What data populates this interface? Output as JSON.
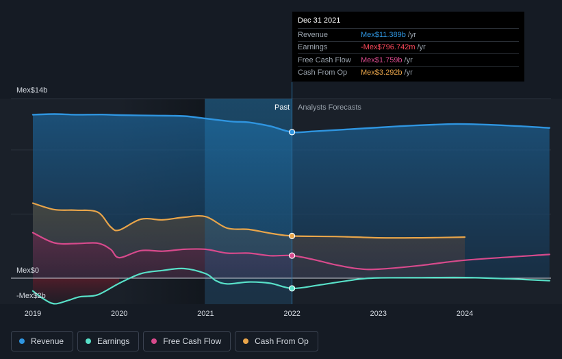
{
  "tooltip": {
    "date": "Dec 31 2021",
    "rows": [
      {
        "label": "Revenue",
        "value": "Mex$11.389b",
        "unit": "/yr",
        "color": "#2f95e0"
      },
      {
        "label": "Earnings",
        "value": "-Mex$796.742m",
        "unit": "/yr",
        "color": "#ff4a5c"
      },
      {
        "label": "Free Cash Flow",
        "value": "Mex$1.759b",
        "unit": "/yr",
        "color": "#d74a8c"
      },
      {
        "label": "Cash From Op",
        "value": "Mex$3.292b",
        "unit": "/yr",
        "color": "#e9a54a"
      }
    ]
  },
  "regions": {
    "past": "Past",
    "forecast": "Analysts Forecasts"
  },
  "legend": [
    {
      "label": "Revenue",
      "color": "#2f95e0"
    },
    {
      "label": "Earnings",
      "color": "#58e0c8"
    },
    {
      "label": "Free Cash Flow",
      "color": "#d74a8c"
    },
    {
      "label": "Cash From Op",
      "color": "#e9a54a"
    }
  ],
  "chart_data": {
    "type": "line",
    "y_unit": "Mex$ billions",
    "ylim": [
      -2,
      14
    ],
    "y_tick_labels": [
      "Mex$14b",
      "Mex$0",
      "-Mex$2b"
    ],
    "xlim": [
      2019,
      2024.98
    ],
    "x_tick_labels": [
      "2019",
      "2020",
      "2021",
      "2022",
      "2023",
      "2024"
    ],
    "highlight_x": 2022,
    "shaded_past_range": [
      2020.99,
      2022
    ],
    "series": [
      {
        "name": "Revenue",
        "color": "#2f95e0",
        "points": [
          [
            2019,
            12.75
          ],
          [
            2019.25,
            12.8
          ],
          [
            2019.5,
            12.75
          ],
          [
            2019.8,
            12.76
          ],
          [
            2020,
            12.72
          ],
          [
            2020.4,
            12.68
          ],
          [
            2020.75,
            12.64
          ],
          [
            2021,
            12.45
          ],
          [
            2021.3,
            12.22
          ],
          [
            2021.5,
            12.15
          ],
          [
            2021.75,
            11.85
          ],
          [
            2022,
            11.389
          ],
          [
            2022.25,
            11.45
          ],
          [
            2022.75,
            11.65
          ],
          [
            2023.25,
            11.85
          ],
          [
            2023.75,
            12.0
          ],
          [
            2024,
            12.02
          ],
          [
            2024.5,
            11.9
          ],
          [
            2024.98,
            11.72
          ]
        ]
      },
      {
        "name": "Earnings",
        "color": "#58e0c8",
        "points": [
          [
            2019,
            -1.0
          ],
          [
            2019.12,
            -1.6
          ],
          [
            2019.25,
            -2.0
          ],
          [
            2019.4,
            -1.75
          ],
          [
            2019.55,
            -1.45
          ],
          [
            2019.75,
            -1.3
          ],
          [
            2020,
            -0.4
          ],
          [
            2020.25,
            0.35
          ],
          [
            2020.5,
            0.6
          ],
          [
            2020.75,
            0.75
          ],
          [
            2021,
            0.35
          ],
          [
            2021.12,
            -0.2
          ],
          [
            2021.25,
            -0.45
          ],
          [
            2021.5,
            -0.3
          ],
          [
            2021.75,
            -0.4
          ],
          [
            2022,
            -0.797
          ],
          [
            2022.3,
            -0.55
          ],
          [
            2022.75,
            -0.1
          ],
          [
            2023,
            0.02
          ],
          [
            2023.5,
            0.04
          ],
          [
            2024,
            0.05
          ],
          [
            2024.5,
            -0.05
          ],
          [
            2024.98,
            -0.2
          ]
        ]
      },
      {
        "name": "Free Cash Flow",
        "color": "#d74a8c",
        "points": [
          [
            2019,
            3.55
          ],
          [
            2019.25,
            2.75
          ],
          [
            2019.5,
            2.7
          ],
          [
            2019.75,
            2.73
          ],
          [
            2019.9,
            2.25
          ],
          [
            2020,
            1.6
          ],
          [
            2020.25,
            2.15
          ],
          [
            2020.5,
            2.1
          ],
          [
            2020.75,
            2.25
          ],
          [
            2021,
            2.25
          ],
          [
            2021.25,
            1.95
          ],
          [
            2021.5,
            1.95
          ],
          [
            2021.75,
            1.75
          ],
          [
            2022,
            1.759
          ],
          [
            2022.25,
            1.45
          ],
          [
            2022.5,
            1.05
          ],
          [
            2022.75,
            0.75
          ],
          [
            2023,
            0.7
          ],
          [
            2023.5,
            1.0
          ],
          [
            2024,
            1.4
          ],
          [
            2024.98,
            1.85
          ]
        ]
      },
      {
        "name": "Cash From Op",
        "color": "#e9a54a",
        "points": [
          [
            2019,
            5.85
          ],
          [
            2019.25,
            5.35
          ],
          [
            2019.5,
            5.3
          ],
          [
            2019.75,
            5.15
          ],
          [
            2019.9,
            4.0
          ],
          [
            2020,
            3.75
          ],
          [
            2020.25,
            4.6
          ],
          [
            2020.5,
            4.55
          ],
          [
            2020.75,
            4.75
          ],
          [
            2021,
            4.8
          ],
          [
            2021.25,
            3.9
          ],
          [
            2021.5,
            3.8
          ],
          [
            2021.75,
            3.5
          ],
          [
            2022,
            3.292
          ],
          [
            2022.5,
            3.25
          ],
          [
            2023,
            3.15
          ],
          [
            2023.5,
            3.15
          ],
          [
            2024,
            3.2
          ]
        ]
      }
    ]
  }
}
